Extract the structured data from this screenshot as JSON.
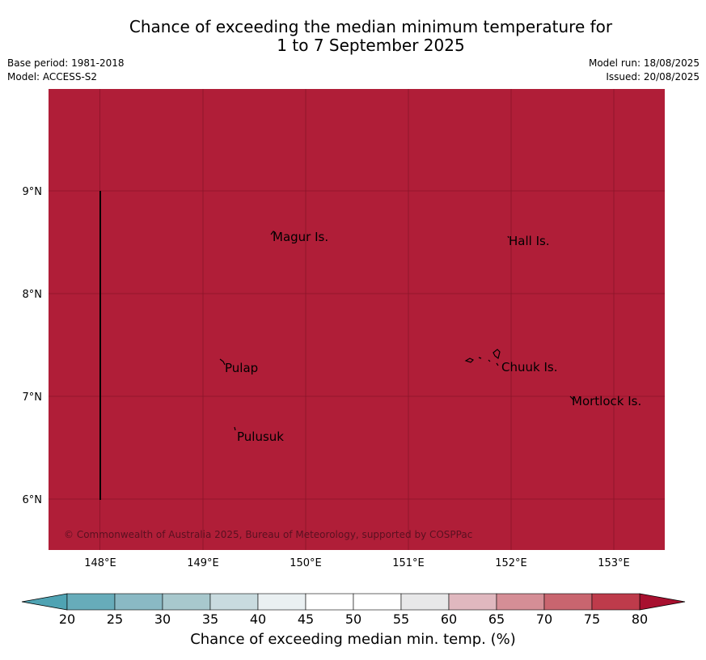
{
  "title": {
    "line1": "Chance of exceeding the median minimum temperature for",
    "line2": "1 to 7 September 2025"
  },
  "meta_left": {
    "base_period": "Base period: 1981-2018",
    "model": "Model: ACCESS-S2"
  },
  "meta_right": {
    "model_run": "Model run: 18/08/2025",
    "issued": "Issued: 20/08/2025"
  },
  "map": {
    "fill_color": "#B01E38",
    "lon_ticks": [
      "148°E",
      "149°E",
      "150°E",
      "151°E",
      "152°E",
      "153°E"
    ],
    "lat_ticks": [
      "9°N",
      "8°N",
      "7°N",
      "6°N"
    ],
    "places": [
      {
        "name": "Magur Is."
      },
      {
        "name": "Hall Is."
      },
      {
        "name": "Pulap"
      },
      {
        "name": "Chuuk Is."
      },
      {
        "name": "Mortlock Is."
      },
      {
        "name": "Pulusuk"
      }
    ],
    "copyright": "© Commonwealth of Australia 2025, Bureau of Meteorology, supported by COSPPac"
  },
  "colorbar": {
    "ticks": [
      "20",
      "25",
      "30",
      "35",
      "40",
      "45",
      "50",
      "55",
      "60",
      "65",
      "70",
      "75",
      "80"
    ],
    "colors": [
      "#67ACBA",
      "#8AB9C4",
      "#A8C8CD",
      "#C9DBDF",
      "#EAF0F2",
      "#FFFFFF",
      "#FFFFFF",
      "#E8E8E9",
      "#E0B8BF",
      "#D58E96",
      "#C9656F",
      "#BE3B4B"
    ],
    "under_color": "#4FA3B3",
    "over_color": "#A8102F",
    "label": "Chance of exceeding median min. temp. (%)"
  }
}
